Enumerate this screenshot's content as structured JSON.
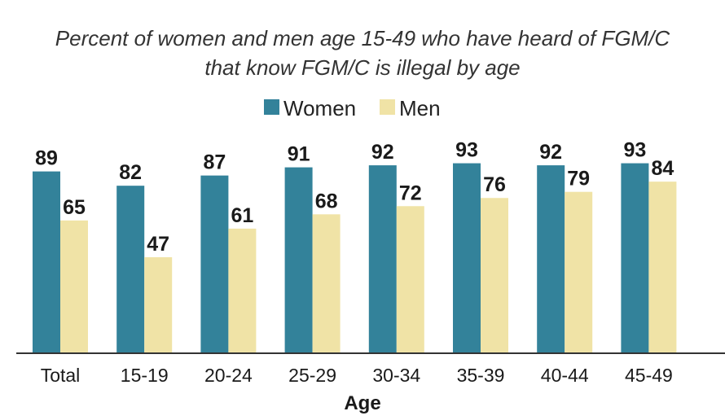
{
  "chart_data": {
    "type": "bar",
    "title_lines": [
      "Percent of women and men age 15-49 who have heard of FGM/C",
      "that know FGM/C is illegal by age"
    ],
    "xlabel": "Age",
    "ylabel": "",
    "categories": [
      "Total",
      "15-19",
      "20-24",
      "25-29",
      "30-34",
      "35-39",
      "40-44",
      "45-49"
    ],
    "series": [
      {
        "name": "Women",
        "color": "#33829A",
        "values": [
          89,
          82,
          87,
          91,
          92,
          93,
          92,
          93
        ]
      },
      {
        "name": "Men",
        "color": "#F0E3A6",
        "values": [
          65,
          47,
          61,
          68,
          72,
          76,
          79,
          84
        ]
      }
    ],
    "ylim": [
      0,
      100
    ],
    "grid": false,
    "legend_position": "top-center"
  }
}
